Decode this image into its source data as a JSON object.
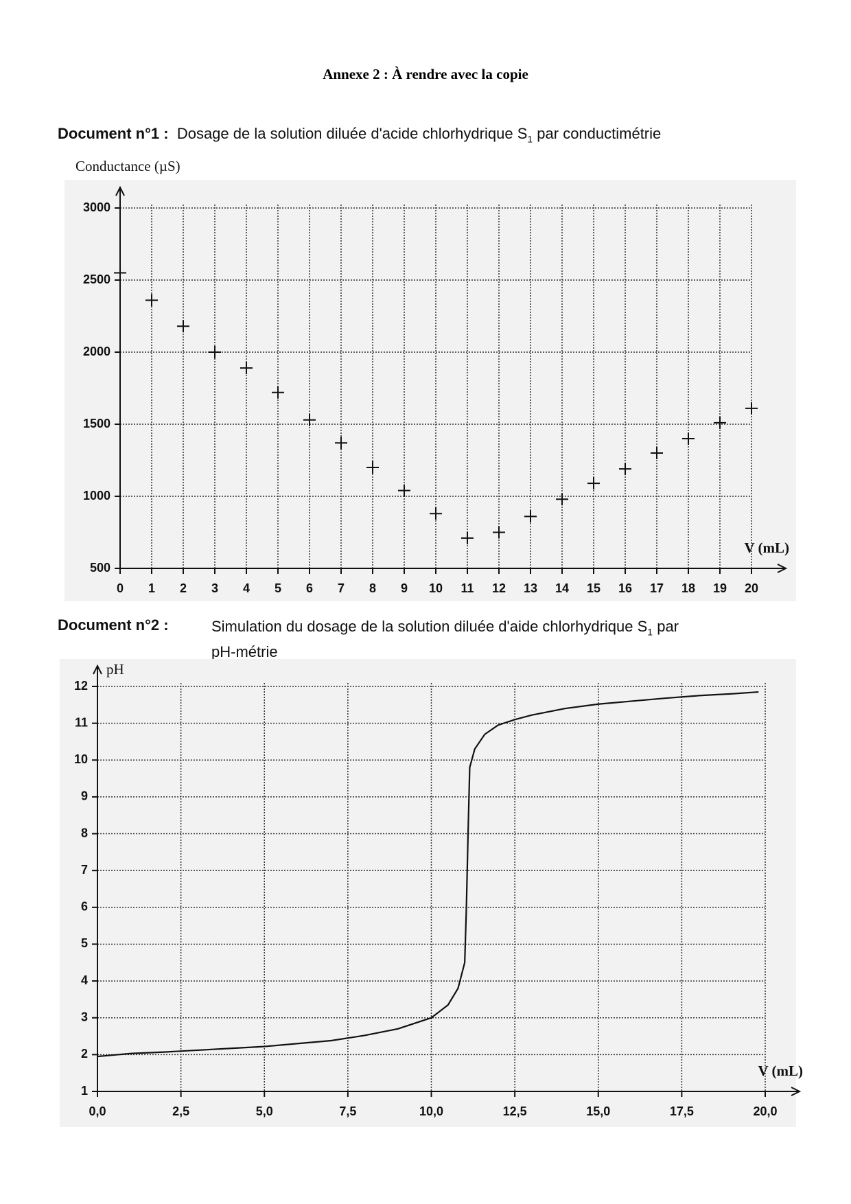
{
  "header": {
    "title": "Annexe 2 : À rendre avec la copie"
  },
  "document1": {
    "label": "Document n°1 :",
    "text": [
      "Dosage de la solution diluée d'acide chlorhydrique S",
      "1",
      " par conductimétrie"
    ]
  },
  "document2": {
    "label": "Document n°2 :",
    "text": [
      "Simulation du dosage de la solution diluée d'aide chlorhydrique S",
      "1",
      " par",
      "pH-métrie"
    ]
  },
  "chart_data": [
    {
      "type": "scatter",
      "y_label": "Conductance (µS)",
      "x_label": "V (mL)",
      "x": [
        0,
        1,
        2,
        3,
        4,
        5,
        6,
        7,
        8,
        9,
        10,
        11,
        12,
        13,
        14,
        15,
        16,
        17,
        18,
        19,
        20
      ],
      "values": [
        2550,
        2360,
        2180,
        2000,
        1890,
        1720,
        1530,
        1370,
        1200,
        1040,
        880,
        710,
        750,
        860,
        980,
        1090,
        1190,
        1300,
        1400,
        1510,
        1610
      ],
      "color": "#111111",
      "xlim": [
        0,
        20
      ],
      "xticks": [
        0,
        1,
        2,
        3,
        4,
        5,
        6,
        7,
        8,
        9,
        10,
        11,
        12,
        13,
        14,
        15,
        16,
        17,
        18,
        19,
        20
      ],
      "ylim": [
        500,
        3000
      ],
      "yticks": [
        500,
        1000,
        1500,
        2000,
        2500,
        3000
      ],
      "grid": true
    },
    {
      "type": "line",
      "y_label": "pH",
      "x_label": "V (mL)",
      "x": [
        0,
        1,
        2,
        3,
        4,
        5,
        6,
        7,
        8,
        9,
        10,
        10.5,
        10.8,
        11,
        11.05,
        11.1,
        11.15,
        11.3,
        11.6,
        12,
        12.5,
        13,
        14,
        15,
        16,
        17,
        18,
        19,
        19.8
      ],
      "values": [
        1.95,
        2.03,
        2.07,
        2.12,
        2.17,
        2.22,
        2.3,
        2.38,
        2.52,
        2.7,
        3.0,
        3.35,
        3.8,
        4.5,
        6,
        8,
        9.8,
        10.3,
        10.7,
        10.95,
        11.1,
        11.22,
        11.4,
        11.52,
        11.6,
        11.68,
        11.75,
        11.8,
        11.85
      ],
      "color": "#111111",
      "xlim": [
        0,
        20
      ],
      "xticks": [
        {
          "value": 0,
          "label": "0,0"
        },
        {
          "value": 2.5,
          "label": "2,5"
        },
        {
          "value": 5,
          "label": "5,0"
        },
        {
          "value": 7.5,
          "label": "7,5"
        },
        {
          "value": 10,
          "label": "10,0"
        },
        {
          "value": 12.5,
          "label": "12,5"
        },
        {
          "value": 15,
          "label": "15,0"
        },
        {
          "value": 17.5,
          "label": "17,5"
        },
        {
          "value": 20,
          "label": "20,0"
        }
      ],
      "ylim": [
        1,
        12
      ],
      "yticks": [
        1,
        2,
        3,
        4,
        5,
        6,
        7,
        8,
        9,
        10,
        11,
        12
      ],
      "grid": true
    }
  ]
}
